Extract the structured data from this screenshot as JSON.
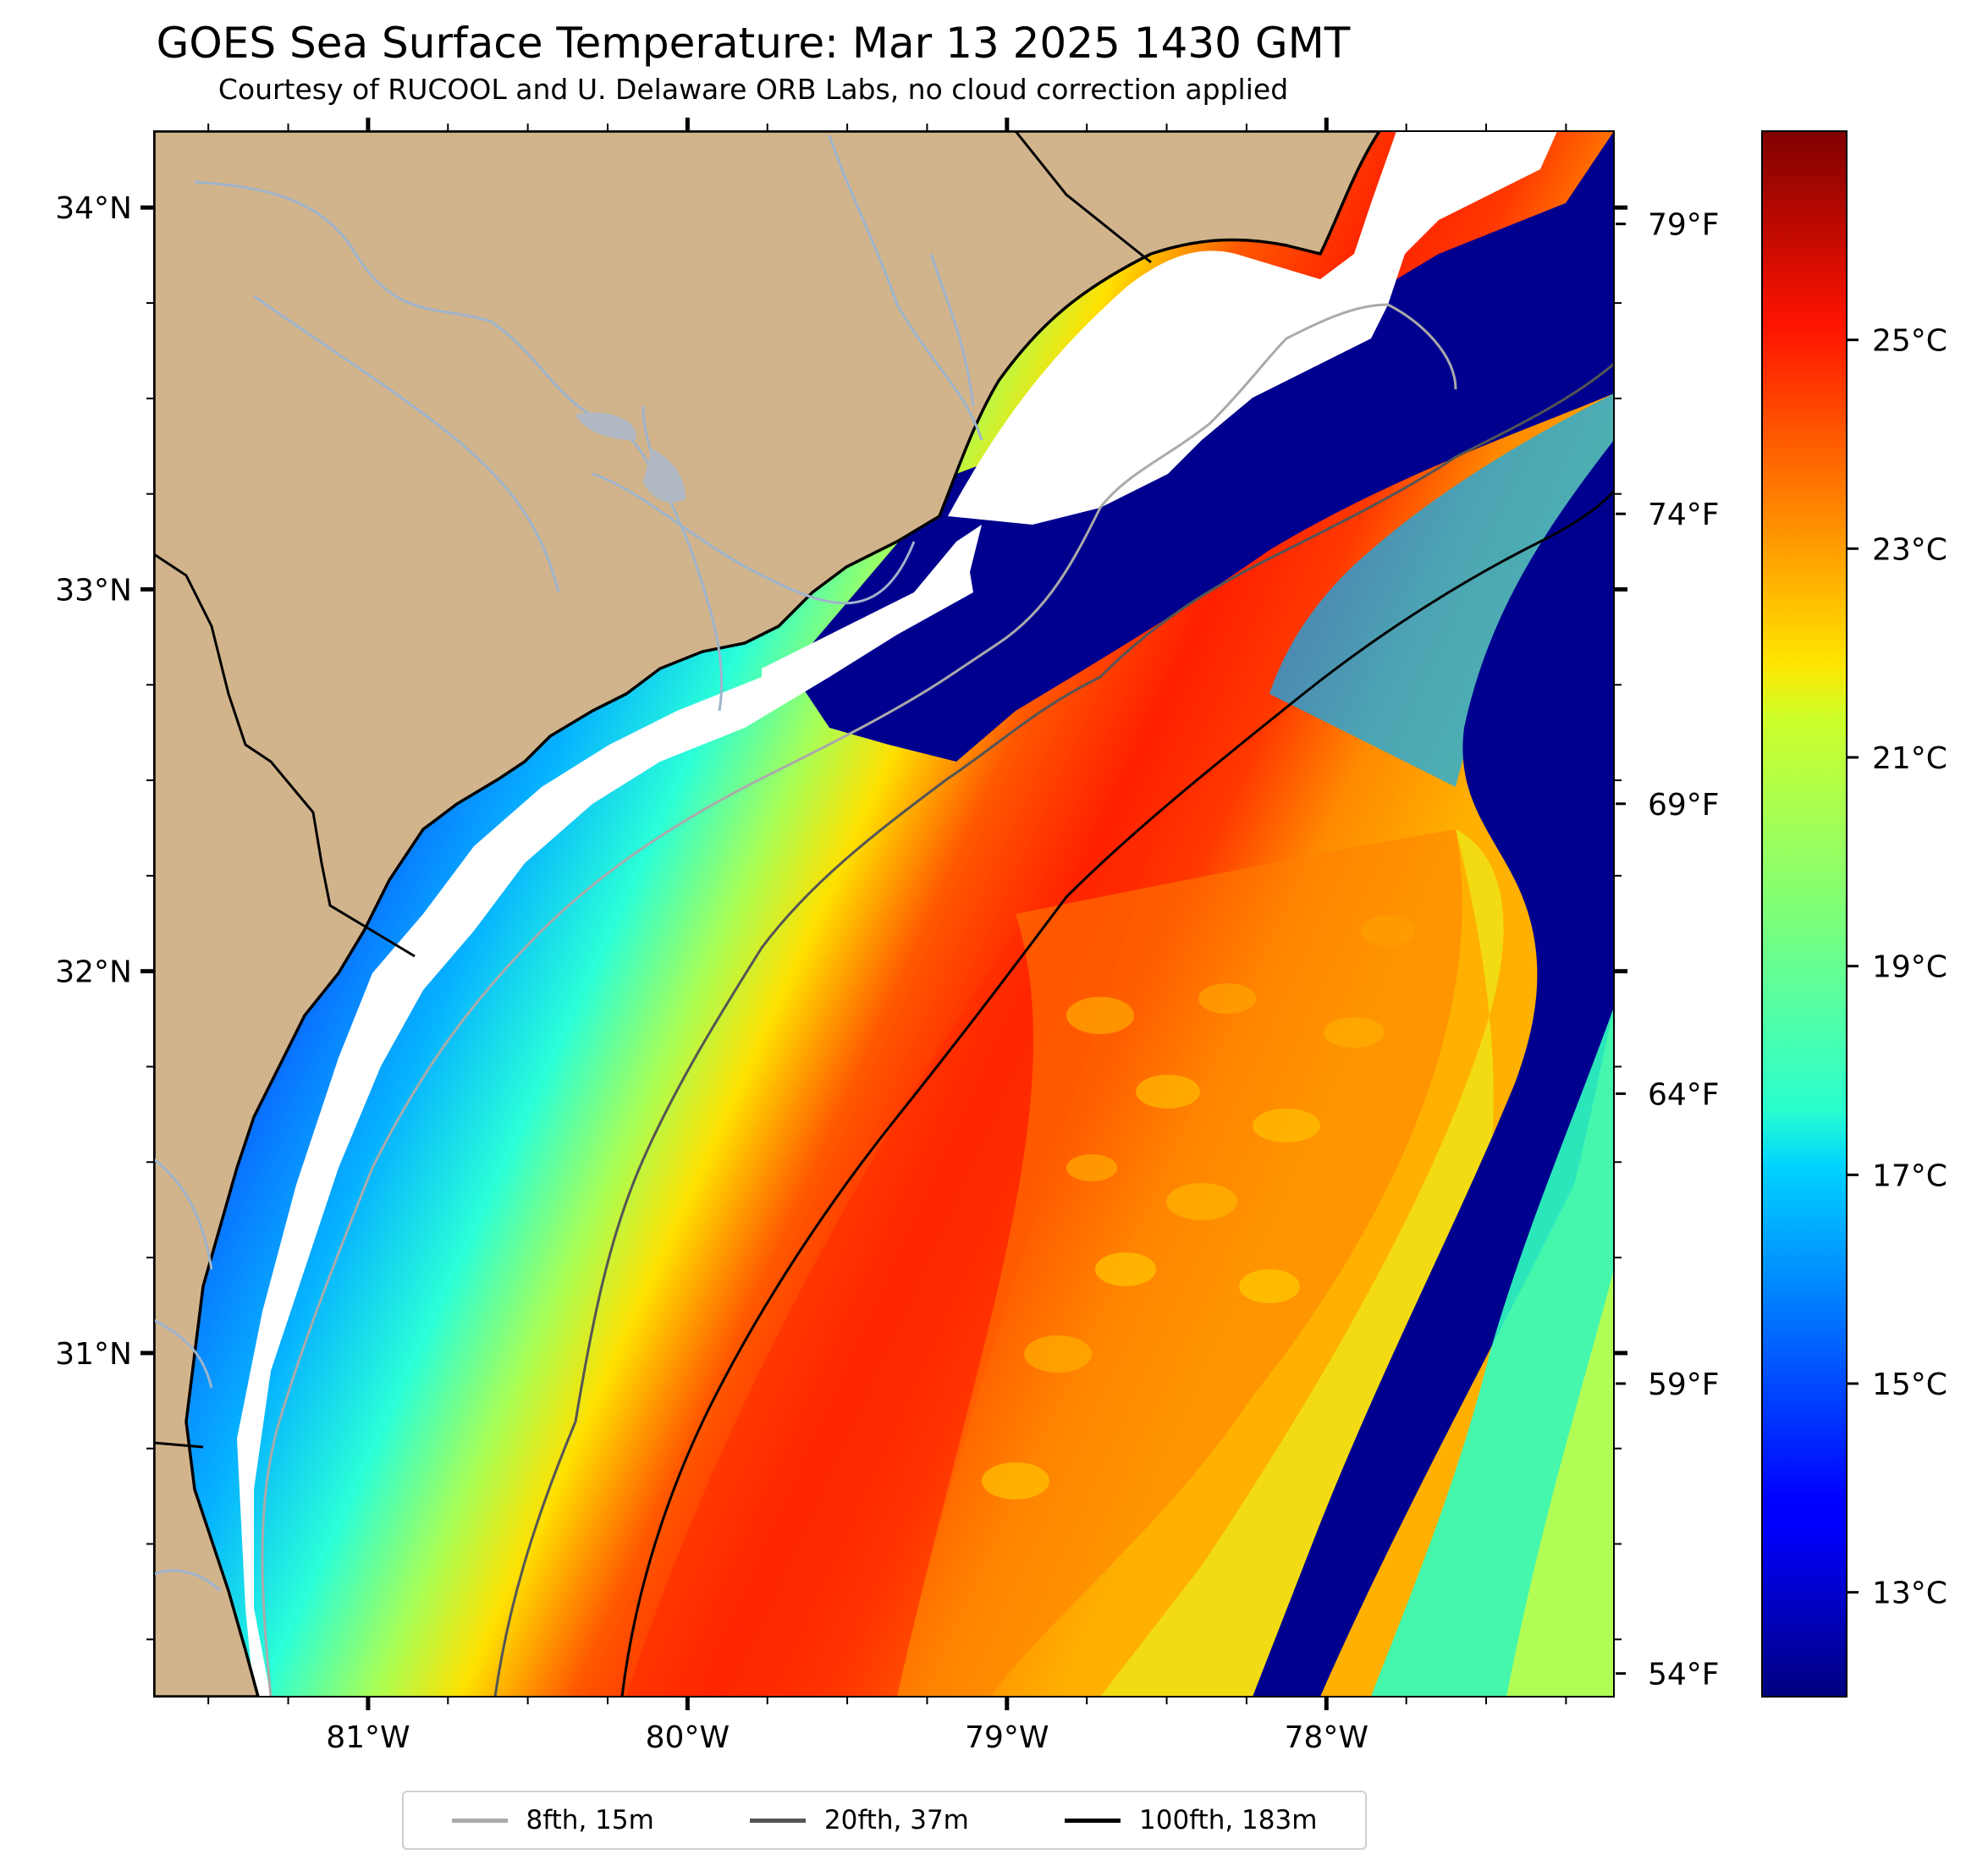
{
  "title": "GOES Sea Surface Temperature: Mar 13 2025 1430 GMT",
  "subtitle": "Courtesy of RUCOOL and U. Delaware ORB Labs, no cloud correction applied",
  "map": {
    "lon_range": [
      -81.67,
      -77.1
    ],
    "lat_range": [
      30.1,
      34.2
    ],
    "lat_ticks": [
      {
        "value": 34,
        "label": "34°N"
      },
      {
        "value": 33,
        "label": "33°N"
      },
      {
        "value": 32,
        "label": "32°N"
      },
      {
        "value": 31,
        "label": "31°N"
      }
    ],
    "lon_ticks": [
      {
        "value": -81,
        "label": "81°W"
      },
      {
        "value": -80,
        "label": "80°W"
      },
      {
        "value": -79,
        "label": "79°W"
      },
      {
        "value": -78,
        "label": "78°W"
      }
    ],
    "land_color": "#d2b48c",
    "cloud_color": "#ffffff",
    "river_color": "#9fb4cc"
  },
  "fahrenheit_ticks": [
    {
      "value": 79,
      "label": "79°F"
    },
    {
      "value": 74,
      "label": "74°F"
    },
    {
      "value": 69,
      "label": "69°F"
    },
    {
      "value": 64,
      "label": "64°F"
    },
    {
      "value": 59,
      "label": "59°F"
    },
    {
      "value": 54,
      "label": "54°F"
    }
  ],
  "colorbar": {
    "colormap": "jet",
    "range_c": [
      12,
      27
    ],
    "ticks": [
      {
        "value": 25,
        "label": "25°C"
      },
      {
        "value": 23,
        "label": "23°C"
      },
      {
        "value": 21,
        "label": "21°C"
      },
      {
        "value": 19,
        "label": "19°C"
      },
      {
        "value": 17,
        "label": "17°C"
      },
      {
        "value": 15,
        "label": "15°C"
      },
      {
        "value": 13,
        "label": "13°C"
      }
    ]
  },
  "legend": [
    {
      "label": "8fth, 15m",
      "color": "#aaaaaa"
    },
    {
      "label": "20fth, 37m",
      "color": "#555555"
    },
    {
      "label": "100fth, 183m",
      "color": "#000000"
    }
  ]
}
